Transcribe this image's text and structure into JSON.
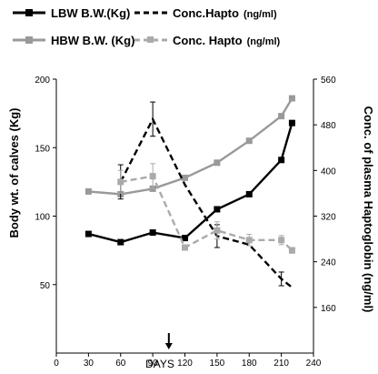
{
  "chart_data": {
    "type": "line",
    "xlabel": "DAYS",
    "ylabel_left": "Body wt. of calves (Kg)",
    "ylabel_right": "Conc. of plasma Haptoglobin (ng/ml)",
    "xlim": [
      0,
      240
    ],
    "ylim_left": [
      0,
      200
    ],
    "ylim_right": [
      80,
      560
    ],
    "x_ticks": [
      0,
      30,
      60,
      90,
      120,
      150,
      180,
      210,
      240
    ],
    "y_left_ticks": [
      50,
      100,
      150,
      200
    ],
    "y_right_ticks": [
      160,
      240,
      320,
      400,
      480,
      560
    ],
    "arrow_at_x": 105,
    "legend": [
      {
        "series": "lbw_bw",
        "label": "LBW B.W.(Kg)",
        "unit": ""
      },
      {
        "series": "lbw_hapto",
        "label": "Conc.Hapto",
        "unit": "(ng/ml)"
      },
      {
        "series": "hbw_bw",
        "label": "HBW B.W. (Kg)",
        "unit": ""
      },
      {
        "series": "hbw_hapto",
        "label": "Conc. Hapto",
        "unit": "(ng/ml)"
      }
    ],
    "series": [
      {
        "id": "lbw_bw",
        "name": "LBW B.W.(Kg)",
        "axis": "left",
        "color": "#000000",
        "style": "solid",
        "marker": "square",
        "x": [
          30,
          60,
          90,
          120,
          150,
          180,
          210,
          220
        ],
        "y": [
          87,
          81,
          88,
          84,
          105,
          116,
          141,
          168
        ],
        "err": [
          0,
          0,
          0,
          0,
          0,
          0,
          0,
          0
        ]
      },
      {
        "id": "hbw_bw",
        "name": "HBW B.W. (Kg)",
        "axis": "left",
        "color": "#999999",
        "style": "solid",
        "marker": "square",
        "x": [
          30,
          60,
          90,
          120,
          150,
          180,
          210,
          220
        ],
        "y": [
          118,
          116,
          120,
          128,
          139,
          155,
          173,
          186
        ],
        "err": [
          0,
          0,
          0,
          0,
          0,
          0,
          0,
          0
        ]
      },
      {
        "id": "lbw_hapto",
        "name": "Conc.Hapto",
        "axis": "right",
        "color": "#000000",
        "style": "dashed",
        "marker": "none",
        "x": [
          60,
          90,
          120,
          150,
          180,
          210,
          220
        ],
        "y": [
          380,
          490,
          375,
          285,
          270,
          210,
          195
        ],
        "err": [
          30,
          30,
          0,
          20,
          0,
          12,
          0
        ]
      },
      {
        "id": "hbw_hapto",
        "name": "Conc. Hapto",
        "axis": "right",
        "color": "#aaaaaa",
        "style": "dashed",
        "marker": "square",
        "x": [
          60,
          90,
          120,
          150,
          180,
          210,
          220
        ],
        "y": [
          380,
          390,
          265,
          295,
          278,
          278,
          260
        ],
        "err": [
          20,
          22,
          0,
          15,
          10,
          8,
          5
        ]
      }
    ]
  }
}
